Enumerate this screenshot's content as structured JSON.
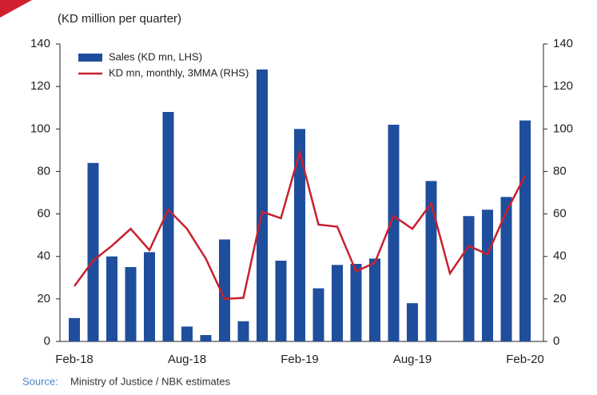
{
  "chart_data": {
    "type": "bar",
    "subtitle": "(KD million per quarter)",
    "categories": [
      "Feb-18",
      null,
      null,
      null,
      null,
      null,
      "Aug-18",
      null,
      null,
      null,
      null,
      null,
      "Feb-19",
      null,
      null,
      null,
      null,
      null,
      "Aug-19",
      null,
      null,
      null,
      null,
      null,
      "Feb-20"
    ],
    "series": [
      {
        "name": "Sales (KD mn, LHS)",
        "color": "#1f4e9c",
        "type": "bar",
        "values": [
          11,
          84,
          40,
          35,
          42,
          108,
          7,
          3,
          48,
          9.5,
          128,
          38,
          100,
          25,
          36,
          36.5,
          39,
          102,
          18,
          75.5,
          null,
          59,
          62,
          68,
          104
        ]
      },
      {
        "name": "KD mn, monthly, 3MMA (RHS)",
        "color": "#c8202f",
        "type": "line",
        "axis": "y2",
        "values": [
          26,
          38,
          45,
          53,
          43,
          62,
          53,
          39,
          20,
          20.5,
          61,
          58,
          89,
          55,
          54,
          33,
          37,
          59,
          53,
          65,
          32,
          45,
          41,
          61,
          78
        ]
      }
    ],
    "ylim": [
      0,
      140
    ],
    "yticks": [
      0,
      20,
      40,
      60,
      80,
      100,
      120,
      140
    ],
    "y2lim": [
      0,
      140
    ],
    "y2ticks": [
      0,
      20,
      40,
      60,
      80,
      100,
      120,
      140
    ],
    "source_label": "Source:",
    "source": "Ministry of Justice / NBK estimates"
  }
}
